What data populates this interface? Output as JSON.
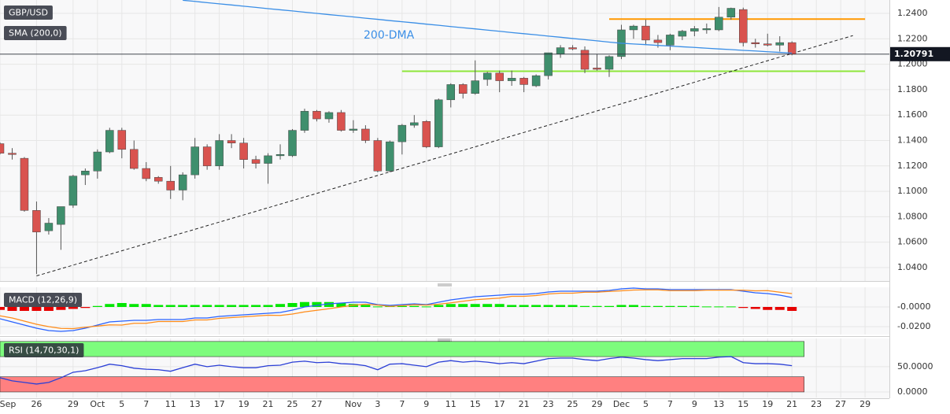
{
  "chart_data": [
    {
      "type": "candlestick",
      "title": "GBP/USD",
      "categories": [
        "Sep",
        null,
        null,
        "26",
        null,
        null,
        "29",
        null,
        "Oct",
        null,
        "5",
        null,
        "7",
        null,
        "11",
        null,
        "13",
        null,
        "17",
        null,
        "19",
        null,
        "21",
        null,
        "25",
        null,
        "27",
        null,
        null,
        "Nov",
        null,
        "3",
        null,
        "7",
        null,
        "9",
        null,
        "11",
        null,
        "15",
        null,
        "17",
        null,
        "21",
        null,
        "23",
        null,
        "25",
        null,
        "29",
        null,
        "Dec",
        null,
        "5",
        null,
        "7",
        null,
        "9",
        null,
        "13",
        null,
        "15",
        null,
        "19",
        null,
        "21",
        null,
        "23",
        null,
        "27",
        null,
        "29",
        null
      ],
      "ohlc": [
        [
          1.1375,
          1.1385,
          1.129,
          1.13
        ],
        [
          1.13,
          1.134,
          1.125,
          1.129
        ],
        [
          1.126,
          1.127,
          1.084,
          1.085
        ],
        [
          1.085,
          1.092,
          1.035,
          1.068
        ],
        [
          1.069,
          1.079,
          1.066,
          1.075
        ],
        [
          1.074,
          1.083,
          1.054,
          1.088
        ],
        [
          1.089,
          1.113,
          1.087,
          1.112
        ],
        [
          1.113,
          1.118,
          1.105,
          1.116
        ],
        [
          1.116,
          1.133,
          1.11,
          1.131
        ],
        [
          1.131,
          1.15,
          1.13,
          1.148
        ],
        [
          1.148,
          1.15,
          1.126,
          1.133
        ],
        [
          1.133,
          1.14,
          1.117,
          1.118
        ],
        [
          1.118,
          1.123,
          1.108,
          1.11
        ],
        [
          1.111,
          1.112,
          1.106,
          1.108
        ],
        [
          1.108,
          1.12,
          1.094,
          1.101
        ],
        [
          1.101,
          1.115,
          1.093,
          1.113
        ],
        [
          1.113,
          1.142,
          1.11,
          1.135
        ],
        [
          1.135,
          1.137,
          1.117,
          1.12
        ],
        [
          1.12,
          1.145,
          1.117,
          1.14
        ],
        [
          1.14,
          1.145,
          1.134,
          1.138
        ],
        [
          1.138,
          1.142,
          1.118,
          1.125
        ],
        [
          1.125,
          1.128,
          1.118,
          1.122
        ],
        [
          1.122,
          1.13,
          1.106,
          1.128
        ],
        [
          1.128,
          1.137,
          1.125,
          1.129
        ],
        [
          1.128,
          1.149,
          1.127,
          1.148
        ],
        [
          1.148,
          1.165,
          1.146,
          1.163
        ],
        [
          1.163,
          1.164,
          1.155,
          1.157
        ],
        [
          1.157,
          1.163,
          1.154,
          1.162
        ],
        [
          1.162,
          1.164,
          1.147,
          1.148
        ],
        [
          1.148,
          1.156,
          1.146,
          1.149
        ],
        [
          1.149,
          1.152,
          1.138,
          1.14
        ],
        [
          1.14,
          1.142,
          1.115,
          1.116
        ],
        [
          1.116,
          1.14,
          1.115,
          1.139
        ],
        [
          1.139,
          1.153,
          1.129,
          1.152
        ],
        [
          1.152,
          1.16,
          1.15,
          1.154
        ],
        [
          1.155,
          1.156,
          1.134,
          1.135
        ],
        [
          1.135,
          1.173,
          1.134,
          1.172
        ],
        [
          1.172,
          1.185,
          1.166,
          1.184
        ],
        [
          1.184,
          1.185,
          1.173,
          1.177
        ],
        [
          1.177,
          1.203,
          1.176,
          1.187
        ],
        [
          1.188,
          1.194,
          1.183,
          1.193
        ],
        [
          1.193,
          1.195,
          1.178,
          1.187
        ],
        [
          1.187,
          1.195,
          1.183,
          1.189
        ],
        [
          1.189,
          1.19,
          1.178,
          1.184
        ],
        [
          1.183,
          1.192,
          1.182,
          1.191
        ],
        [
          1.191,
          1.209,
          1.188,
          1.209
        ],
        [
          1.208,
          1.215,
          1.205,
          1.213
        ],
        [
          1.213,
          1.215,
          1.211,
          1.212
        ],
        [
          1.211,
          1.214,
          1.193,
          1.196
        ],
        [
          1.197,
          1.208,
          1.195,
          1.196
        ],
        [
          1.196,
          1.207,
          1.19,
          1.206
        ],
        [
          1.206,
          1.231,
          1.204,
          1.227
        ],
        [
          1.227,
          1.231,
          1.22,
          1.23
        ],
        [
          1.23,
          1.235,
          1.215,
          1.219
        ],
        [
          1.219,
          1.223,
          1.213,
          1.217
        ],
        [
          1.215,
          1.224,
          1.211,
          1.223
        ],
        [
          1.222,
          1.227,
          1.219,
          1.226
        ],
        [
          1.226,
          1.23,
          1.222,
          1.228
        ],
        [
          1.227,
          1.232,
          1.224,
          1.228
        ],
        [
          1.227,
          1.245,
          1.226,
          1.237
        ],
        [
          1.237,
          1.2445,
          1.235,
          1.244
        ],
        [
          1.243,
          1.2445,
          1.214,
          1.217
        ],
        [
          1.217,
          1.22,
          1.213,
          1.216
        ],
        [
          1.216,
          1.224,
          1.214,
          1.215
        ],
        [
          1.215,
          1.222,
          1.21,
          1.217
        ],
        [
          1.217,
          1.218,
          1.207,
          1.2079
        ],
        null,
        null,
        null,
        null,
        null,
        null,
        null
      ],
      "up_color": "#3f8f6d",
      "down_color": "#d9534f",
      "ylim": [
        1.0295,
        1.2505
      ],
      "yticks": [
        {
          "value": 1.24,
          "label": "1.2400"
        },
        {
          "value": 1.22,
          "label": "1.2200"
        },
        {
          "value": 1.2,
          "label": "1.2000"
        },
        {
          "value": 1.18,
          "label": "1.1800"
        },
        {
          "value": 1.16,
          "label": "1.1600"
        },
        {
          "value": 1.14,
          "label": "1.1400"
        },
        {
          "value": 1.12,
          "label": "1.1200"
        },
        {
          "value": 1.1,
          "label": "1.1000"
        },
        {
          "value": 1.08,
          "label": "1.0800"
        },
        {
          "value": 1.06,
          "label": "1.0600"
        },
        {
          "value": 1.04,
          "label": "1.0400"
        }
      ],
      "grid": true,
      "series": [
        {
          "name": "SMA (200,0)",
          "color": "#3a8ee6",
          "values": [
            null,
            null,
            null,
            null,
            null,
            null,
            null,
            null,
            null,
            null,
            null,
            null,
            null,
            null,
            null,
            1.2503,
            1.2494,
            1.2484,
            1.2475,
            1.2466,
            1.2456,
            1.2447,
            1.2437,
            1.2428,
            1.2419,
            1.2409,
            1.24,
            1.239,
            1.2381,
            1.2372,
            1.2362,
            1.2353,
            1.2343,
            1.2334,
            1.2325,
            1.2315,
            1.2306,
            1.2296,
            1.2287,
            1.2278,
            1.2268,
            1.2259,
            1.2249,
            1.224,
            1.2231,
            1.2221,
            1.2212,
            1.2202,
            1.2193,
            1.2184,
            1.2174,
            1.2165,
            1.2159,
            1.2154,
            1.2148,
            1.2143,
            1.2137,
            1.2132,
            1.2126,
            1.212,
            1.2115,
            1.2109,
            1.2104,
            1.2098,
            1.2093,
            1.2087,
            null,
            null,
            null,
            null,
            null,
            null,
            null
          ]
        }
      ],
      "annotation": "200-DMA",
      "last_price": 1.20791,
      "levels": [
        {
          "value": 1.2355,
          "color": "#ff9800",
          "from": 50,
          "to": 71
        },
        {
          "value": 1.1945,
          "color": "#8ee63a",
          "from": 33,
          "to": 71
        }
      ],
      "trendline": {
        "x": [
          3,
          70
        ],
        "values": [
          1.0335,
          1.2225
        ]
      }
    },
    {
      "type": "macd",
      "title": "MACD (12,26,9)",
      "ylim": [
        -0.028,
        0.02
      ],
      "yticks": [
        {
          "value": 0,
          "label": "-0.0000"
        },
        {
          "value": -0.02,
          "label": "-0.0200"
        }
      ],
      "up_color": "#00e600",
      "down_color": "#e60000",
      "histogram": [
        -0.003,
        -0.004,
        -0.004,
        -0.004,
        -0.004,
        -0.003,
        -0.002,
        -0.001,
        0.001,
        0.003,
        0.004,
        0.003,
        0.003,
        0.002,
        0.002,
        0.002,
        0.002,
        0.002,
        0.002,
        0.002,
        0.002,
        0.002,
        0.002,
        0.003,
        0.004,
        0.005,
        0.005,
        0.005,
        0.004,
        0.003,
        0.002,
        0.0005,
        0.001,
        0.001,
        0.001,
        0.0005,
        0.002,
        0.003,
        0.003,
        0.003,
        0.003,
        0.003,
        0.002,
        0.002,
        0.002,
        0.002,
        0.002,
        0.002,
        0.001,
        0.001,
        0.001,
        0.002,
        0.002,
        0.001,
        0.001,
        0.001,
        0.001,
        0.001,
        0.0005,
        0.0005,
        0.0005,
        -0.001,
        -0.002,
        -0.003,
        -0.003,
        -0.004,
        null,
        null,
        null,
        null,
        null,
        null,
        null
      ],
      "series": [
        {
          "color": "#2962ff",
          "values": [
            -0.012,
            -0.0152,
            -0.0184,
            -0.0216,
            -0.024,
            -0.0248,
            -0.024,
            -0.0216,
            -0.0184,
            -0.0152,
            -0.0144,
            -0.0136,
            -0.0136,
            -0.0128,
            -0.0128,
            -0.0128,
            -0.0112,
            -0.0112,
            -0.0096,
            -0.0088,
            -0.008,
            -0.0072,
            -0.0064,
            -0.0056,
            -0.0032,
            0,
            0.0016,
            0.0032,
            0.004,
            0.0048,
            0.0048,
            0.0024,
            0.0016,
            0.0024,
            0.0032,
            0.0024,
            0.0048,
            0.0072,
            0.0088,
            0.0104,
            0.0112,
            0.012,
            0.0128,
            0.0128,
            0.0136,
            0.0152,
            0.016,
            0.016,
            0.016,
            0.016,
            0.0168,
            0.0184,
            0.0192,
            0.0184,
            0.0184,
            0.0176,
            0.0176,
            0.0176,
            0.0176,
            0.0176,
            0.0176,
            0.016,
            0.0144,
            0.0136,
            0.012,
            0.0096,
            null,
            null,
            null,
            null,
            null,
            null,
            null
          ]
        },
        {
          "color": "#ff8c1a",
          "values": [
            -0.009,
            -0.0112,
            -0.0144,
            -0.0176,
            -0.02,
            -0.0218,
            -0.022,
            -0.0206,
            -0.0194,
            -0.0182,
            -0.0184,
            -0.0166,
            -0.0166,
            -0.0148,
            -0.0148,
            -0.0148,
            -0.0132,
            -0.0132,
            -0.0116,
            -0.0108,
            -0.01,
            -0.0092,
            -0.0084,
            -0.0086,
            -0.0072,
            -0.005,
            -0.0034,
            -0.0018,
            0,
            0.0018,
            0.0028,
            0.0019,
            0.0006,
            0.0014,
            0.0022,
            0.0019,
            0.0028,
            0.0042,
            0.0058,
            0.0074,
            0.0082,
            0.009,
            0.0108,
            0.0108,
            0.0116,
            0.0132,
            0.014,
            0.014,
            0.015,
            0.015,
            0.0158,
            0.0164,
            0.0172,
            0.0174,
            0.0174,
            0.0166,
            0.0166,
            0.0166,
            0.0171,
            0.0171,
            0.0171,
            0.017,
            0.0164,
            0.0166,
            0.015,
            0.0136,
            null,
            null,
            null,
            null,
            null,
            null,
            null
          ]
        }
      ]
    },
    {
      "type": "rsi",
      "title": "RSI (14,70,30,1)",
      "ylim": [
        -11,
        106
      ],
      "yticks": [
        {
          "value": 50,
          "label": "50.0000"
        },
        {
          "value": 0,
          "label": "0.0000"
        }
      ],
      "bands": [
        {
          "from": 70,
          "to": 100,
          "color": "#7dfc7d"
        },
        {
          "from": 0,
          "to": 30,
          "color": "#ff8080"
        }
      ],
      "series": [
        {
          "color": "#2b3fd6",
          "values": [
            28.1,
            21.9,
            18.8,
            15.6,
            18.8,
            28.1,
            39,
            42,
            48,
            55,
            52,
            47,
            45,
            44,
            41,
            48,
            55,
            50,
            53,
            50,
            48,
            48,
            52,
            53,
            59,
            61,
            58,
            59,
            56,
            55,
            52,
            44,
            55,
            56,
            53,
            50,
            59,
            62,
            59,
            61,
            59,
            56,
            58,
            56,
            61,
            66,
            67,
            67,
            64,
            62,
            66,
            69,
            67,
            64,
            62,
            64,
            66,
            66,
            66,
            69,
            70,
            58,
            56,
            56,
            55,
            52,
            null,
            null,
            null,
            null,
            null,
            null,
            null
          ]
        }
      ]
    }
  ]
}
